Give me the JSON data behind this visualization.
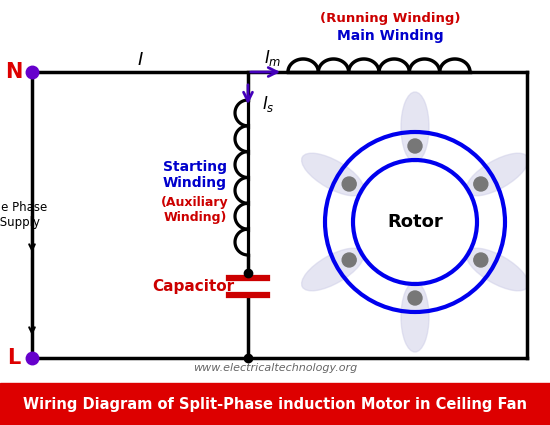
{
  "title": "Wiring Diagram of Split-Phase induction Motor in Ceiling Fan",
  "title_bg": "#dd0000",
  "title_color": "#ffffff",
  "website": "www.electricaltechnology.org",
  "background_color": "#ffffff",
  "N_label": "N",
  "L_label": "L",
  "NL_color": "#dd0000",
  "dot_color": "#6600cc",
  "arrow_color": "#4400bb",
  "black": "#000000",
  "starting_winding_color": "#0000cc",
  "auxiliary_winding_color": "#cc0000",
  "capacitor_color": "#cc0000",
  "capacitor_label": "Capacitor",
  "rotor_color": "#0000ee",
  "rotor_label": "Rotor",
  "rotor_dot_color": "#777777",
  "fan_blade_color": "#d0d0e8",
  "running_winding_label_red": "(Running Winding)",
  "running_winding_label_blue": "Main Winding",
  "single_phase_label": "Single Phase\nAC Supply",
  "starting_winding_label": "Starting\nWinding",
  "auxiliary_label": "(Auxiliary\nWinding)",
  "lw_main": 2.5,
  "fig_w": 5.5,
  "fig_h": 4.25,
  "dpi": 100
}
